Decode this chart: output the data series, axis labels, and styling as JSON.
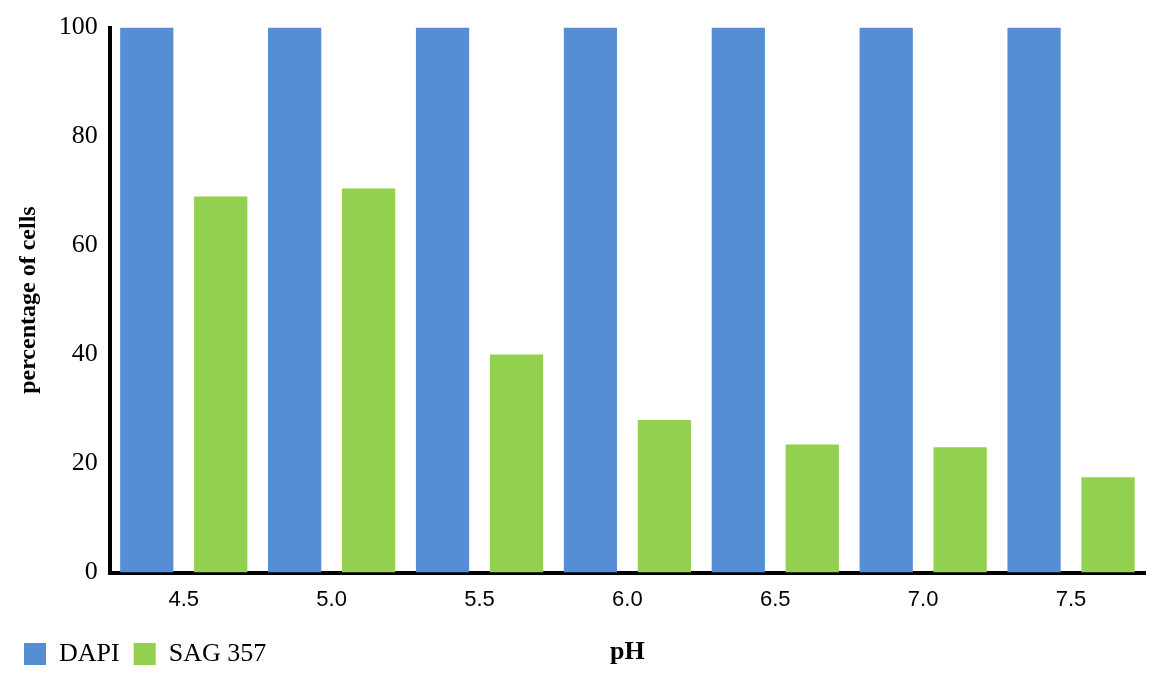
{
  "chart_data": {
    "type": "bar",
    "xlabel": "pH",
    "ylabel": "percentage of cells",
    "categories": [
      "4.5",
      "5.0",
      "5.5",
      "6.0",
      "6.5",
      "7.0",
      "7.5"
    ],
    "series": [
      {
        "name": "DAPI",
        "color": "#558ed5",
        "values": [
          100,
          100,
          100,
          100,
          100,
          100,
          100
        ]
      },
      {
        "name": "SAG 357",
        "color": "#92d050",
        "values": [
          69,
          70.5,
          40,
          28,
          23.5,
          23,
          17.5
        ]
      }
    ],
    "ylim": [
      0,
      100
    ],
    "yticks": [
      0,
      20,
      40,
      60,
      80,
      100
    ],
    "grid": false,
    "legend": "bottom left"
  }
}
